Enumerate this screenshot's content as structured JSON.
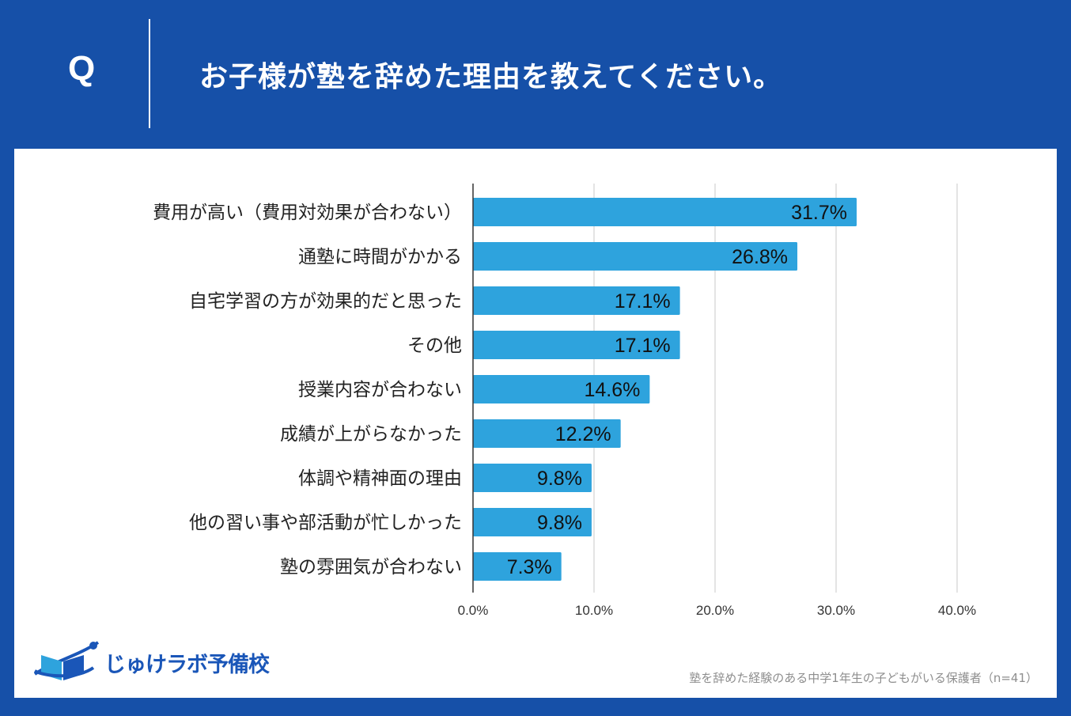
{
  "header": {
    "q_label": "Q",
    "question": "お子様が塾を辞めた理由を教えてください。"
  },
  "chart_data": {
    "type": "bar",
    "orientation": "horizontal",
    "categories": [
      "費用が高い（費用対効果が合わない）",
      "通塾に時間がかかる",
      "自宅学習の方が効果的だと思った",
      "その他",
      "授業内容が合わない",
      "成績が上がらなかった",
      "体調や精神面の理由",
      "他の習い事や部活動が忙しかった",
      "塾の雰囲気が合わない"
    ],
    "values": [
      31.7,
      26.8,
      17.1,
      17.1,
      14.6,
      12.2,
      9.8,
      9.8,
      7.3
    ],
    "data_labels": [
      "31.7%",
      "26.8%",
      "17.1%",
      "17.1%",
      "14.6%",
      "12.2%",
      "9.8%",
      "9.8%",
      "7.3%"
    ],
    "xlim": [
      0,
      40
    ],
    "x_ticks": [
      0,
      10,
      20,
      30,
      40
    ],
    "x_tick_labels": [
      "0.0%",
      "10.0%",
      "20.0%",
      "30.0%",
      "40.0%"
    ],
    "grid": true,
    "bar_color": "#2ea3dd"
  },
  "footer": {
    "logo_text": "じゅけラボ予備校",
    "source_note": "塾を辞めた経験のある中学1年生の子どもがいる保護者（n=41）"
  },
  "colors": {
    "background": "#1650a8",
    "panel": "#ffffff",
    "bar": "#2ea3dd",
    "logo": "#1a56b8"
  }
}
